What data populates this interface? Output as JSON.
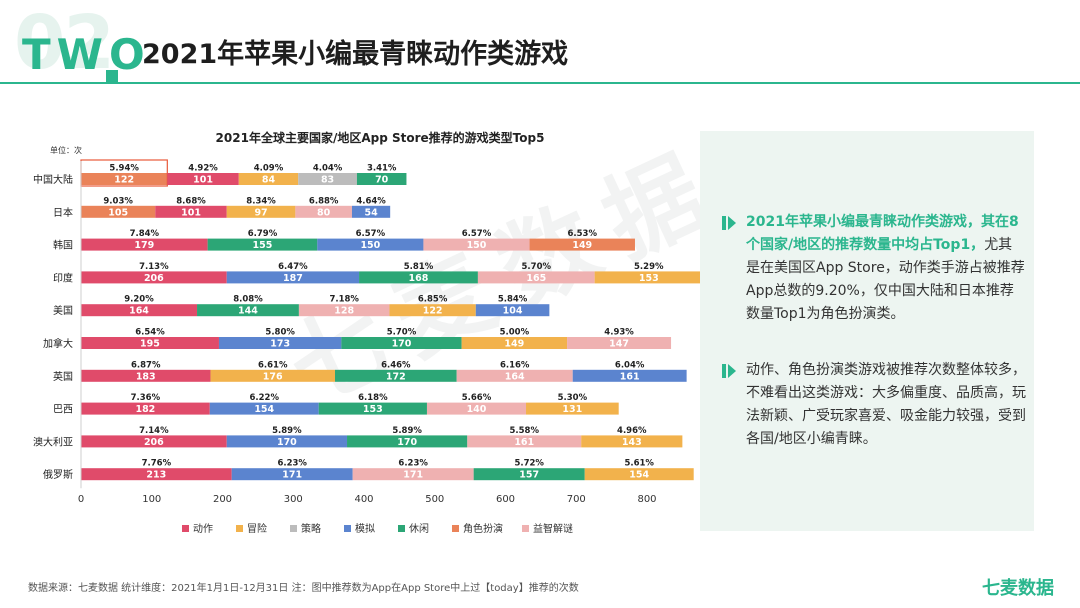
{
  "header": {
    "big_number": "02",
    "section_label": "TWO",
    "title": "2021年苹果小编最青睐动作类游戏"
  },
  "watermark": "七麦数据",
  "chart_data": {
    "type": "bar",
    "orientation": "horizontal",
    "stacked": true,
    "title": "2021年全球主要国家/地区App Store推荐的游戏类型Top5",
    "unit_label": "单位：次",
    "xlim": [
      0,
      800
    ],
    "xticks": [
      0,
      100,
      200,
      300,
      400,
      500,
      600,
      700,
      800
    ],
    "grid": false,
    "legend_position": "bottom",
    "highlighted_segment": {
      "row": 0,
      "segment": 0
    },
    "legend": [
      {
        "name": "动作",
        "color": "#e04b6a"
      },
      {
        "name": "冒险",
        "color": "#f2b24c"
      },
      {
        "name": "策略",
        "color": "#bcbcbc"
      },
      {
        "name": "模拟",
        "color": "#5b84cf"
      },
      {
        "name": "休闲",
        "color": "#2ca676"
      },
      {
        "name": "角色扮演",
        "color": "#ea8359"
      },
      {
        "name": "益智解谜",
        "color": "#efb1b1"
      }
    ],
    "rows": [
      {
        "label": "中国大陆",
        "segments": [
          {
            "series": "角色扮演",
            "value": 122,
            "pct": "5.94%"
          },
          {
            "series": "动作",
            "value": 101,
            "pct": "4.92%"
          },
          {
            "series": "冒险",
            "value": 84,
            "pct": "4.09%"
          },
          {
            "series": "策略",
            "value": 83,
            "pct": "4.04%"
          },
          {
            "series": "休闲",
            "value": 70,
            "pct": "3.41%"
          }
        ]
      },
      {
        "label": "日本",
        "segments": [
          {
            "series": "角色扮演",
            "value": 105,
            "pct": "9.03%"
          },
          {
            "series": "动作",
            "value": 101,
            "pct": "8.68%"
          },
          {
            "series": "冒险",
            "value": 97,
            "pct": "8.34%"
          },
          {
            "series": "益智解谜",
            "value": 80,
            "pct": "6.88%"
          },
          {
            "series": "模拟",
            "value": 54,
            "pct": "4.64%"
          }
        ]
      },
      {
        "label": "韩国",
        "segments": [
          {
            "series": "动作",
            "value": 179,
            "pct": "7.84%"
          },
          {
            "series": "休闲",
            "value": 155,
            "pct": "6.79%"
          },
          {
            "series": "模拟",
            "value": 150,
            "pct": "6.57%"
          },
          {
            "series": "益智解谜",
            "value": 150,
            "pct": "6.57%"
          },
          {
            "series": "角色扮演",
            "value": 149,
            "pct": "6.53%"
          }
        ]
      },
      {
        "label": "印度",
        "segments": [
          {
            "series": "动作",
            "value": 206,
            "pct": "7.13%"
          },
          {
            "series": "模拟",
            "value": 187,
            "pct": "6.47%"
          },
          {
            "series": "休闲",
            "value": 168,
            "pct": "5.81%"
          },
          {
            "series": "益智解谜",
            "value": 165,
            "pct": "5.70%"
          },
          {
            "series": "冒险",
            "value": 153,
            "pct": "5.29%"
          }
        ]
      },
      {
        "label": "美国",
        "segments": [
          {
            "series": "动作",
            "value": 164,
            "pct": "9.20%"
          },
          {
            "series": "休闲",
            "value": 144,
            "pct": "8.08%"
          },
          {
            "series": "益智解谜",
            "value": 128,
            "pct": "7.18%"
          },
          {
            "series": "冒险",
            "value": 122,
            "pct": "6.85%"
          },
          {
            "series": "模拟",
            "value": 104,
            "pct": "5.84%"
          }
        ]
      },
      {
        "label": "加拿大",
        "segments": [
          {
            "series": "动作",
            "value": 195,
            "pct": "6.54%"
          },
          {
            "series": "模拟",
            "value": 173,
            "pct": "5.80%"
          },
          {
            "series": "休闲",
            "value": 170,
            "pct": "5.70%"
          },
          {
            "series": "冒险",
            "value": 149,
            "pct": "5.00%"
          },
          {
            "series": "益智解谜",
            "value": 147,
            "pct": "4.93%"
          }
        ]
      },
      {
        "label": "英国",
        "segments": [
          {
            "series": "动作",
            "value": 183,
            "pct": "6.87%"
          },
          {
            "series": "冒险",
            "value": 176,
            "pct": "6.61%"
          },
          {
            "series": "休闲",
            "value": 172,
            "pct": "6.46%"
          },
          {
            "series": "益智解谜",
            "value": 164,
            "pct": "6.16%"
          },
          {
            "series": "模拟",
            "value": 161,
            "pct": "6.04%"
          }
        ]
      },
      {
        "label": "巴西",
        "segments": [
          {
            "series": "动作",
            "value": 182,
            "pct": "7.36%"
          },
          {
            "series": "模拟",
            "value": 154,
            "pct": "6.22%"
          },
          {
            "series": "休闲",
            "value": 153,
            "pct": "6.18%"
          },
          {
            "series": "益智解谜",
            "value": 140,
            "pct": "5.66%"
          },
          {
            "series": "冒险",
            "value": 131,
            "pct": "5.30%"
          }
        ]
      },
      {
        "label": "澳大利亚",
        "segments": [
          {
            "series": "动作",
            "value": 206,
            "pct": "7.14%"
          },
          {
            "series": "模拟",
            "value": 170,
            "pct": "5.89%"
          },
          {
            "series": "休闲",
            "value": 170,
            "pct": "5.89%"
          },
          {
            "series": "益智解谜",
            "value": 161,
            "pct": "5.58%"
          },
          {
            "series": "冒险",
            "value": 143,
            "pct": "4.96%"
          }
        ]
      },
      {
        "label": "俄罗斯",
        "segments": [
          {
            "series": "动作",
            "value": 213,
            "pct": "7.76%"
          },
          {
            "series": "模拟",
            "value": 171,
            "pct": "6.23%"
          },
          {
            "series": "益智解谜",
            "value": 171,
            "pct": "6.23%"
          },
          {
            "series": "休闲",
            "value": 157,
            "pct": "5.72%"
          },
          {
            "series": "冒险",
            "value": 154,
            "pct": "5.61%"
          }
        ]
      }
    ]
  },
  "panel": {
    "p1_highlight": "2021年苹果小编最青睐动作类游戏，其在8个国家/地区的推荐数量中均占Top1，",
    "p1_rest": "尤其是在美国区App Store，动作类手游占被推荐App总数的9.20%，仅中国大陆和日本推荐数量Top1为角色扮演类。",
    "p2": "动作、角色扮演类游戏被推荐次数整体较多，不难看出这类游戏：大多偏重度、品质高，玩法新颖、广受玩家喜爱、吸金能力较强，受到各国/地区小编青睐。"
  },
  "footer": {
    "source": "数据来源：七麦数据  统计维度：2021年1月1日-12月31日  注：图中推荐数为App在App Store中上过【today】推荐的次数",
    "brand": "七麦数据"
  },
  "colors": {
    "accent": "#2bb68e",
    "panel_bg": "#edf5f1"
  }
}
